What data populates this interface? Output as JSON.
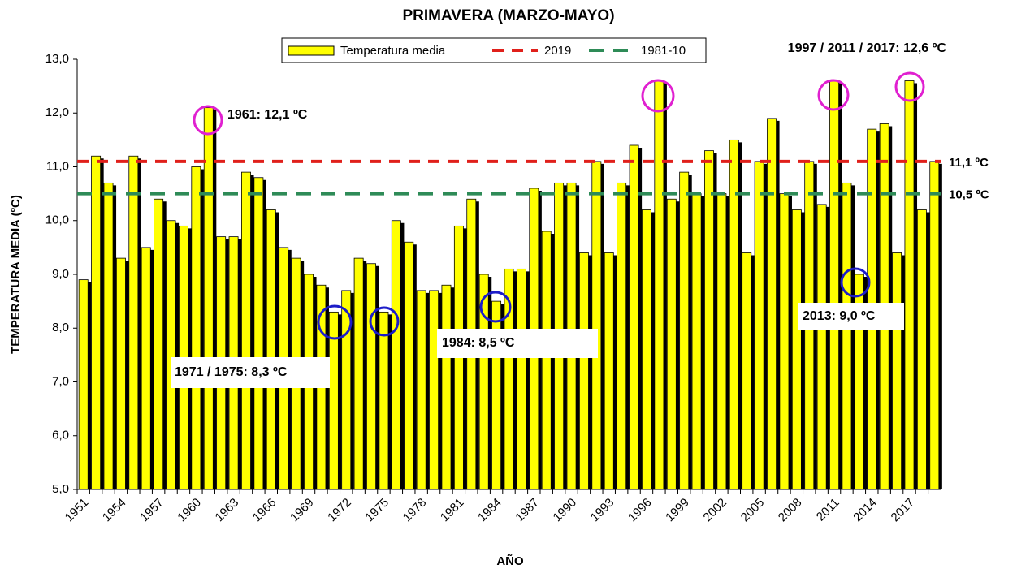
{
  "chart_data": {
    "type": "bar",
    "title": "PRIMAVERA (MARZO-MAYO)",
    "x_label": "AÑO",
    "y_label": "TEMPERATURA MEDIA (ºC)",
    "categories": [
      "1951",
      null,
      null,
      "1954",
      null,
      null,
      "1957",
      null,
      null,
      "1960",
      null,
      null,
      "1963",
      null,
      null,
      "1966",
      null,
      null,
      "1969",
      null,
      null,
      "1972",
      null,
      null,
      "1975",
      null,
      null,
      "1978",
      null,
      null,
      "1981",
      null,
      null,
      "1984",
      null,
      null,
      "1987",
      null,
      null,
      "1990",
      null,
      null,
      "1993",
      null,
      null,
      "1996",
      null,
      null,
      "1999",
      null,
      null,
      "2002",
      null,
      null,
      "2005",
      null,
      null,
      "2008",
      null,
      null,
      "2011",
      null,
      null,
      "2014",
      null,
      null,
      "2017",
      null,
      null
    ],
    "series": [
      {
        "name": "Temperatura media",
        "color": "#ffff00",
        "values": [
          8.9,
          11.2,
          10.7,
          9.3,
          11.2,
          9.5,
          10.4,
          10.0,
          9.9,
          11.0,
          12.1,
          9.7,
          9.7,
          10.9,
          10.8,
          10.2,
          9.5,
          9.3,
          9.0,
          8.8,
          8.3,
          8.7,
          9.3,
          9.2,
          8.3,
          10.0,
          9.6,
          8.7,
          8.7,
          8.8,
          9.9,
          10.4,
          9.0,
          8.5,
          9.1,
          9.1,
          10.6,
          9.8,
          10.7,
          10.7,
          9.4,
          11.1,
          9.4,
          10.7,
          11.4,
          10.2,
          12.6,
          10.4,
          10.9,
          10.5,
          11.3,
          10.5,
          11.5,
          9.4,
          11.1,
          11.9,
          10.5,
          10.2,
          11.1,
          10.3,
          12.6,
          10.7,
          9.0,
          11.7,
          11.8,
          9.4,
          12.6,
          10.2,
          11.1
        ]
      }
    ],
    "reference_lines": [
      {
        "name": "2019",
        "value": 11.1,
        "label": "11,1 ºC",
        "color": "#e0201b"
      },
      {
        "name": "1981-10",
        "value": 10.5,
        "label": "10,5 ºC",
        "color": "#2e8b57"
      }
    ],
    "annotations": [
      {
        "text": "1961: 12,1 ºC",
        "color": "#e020d0"
      },
      {
        "text": "1997 / 2011 / 2017: 12,6 ºC",
        "color": "#e020d0"
      },
      {
        "text": "1971 / 1975: 8,3 ºC",
        "color": "#1c1cc8"
      },
      {
        "text": "1984: 8,5 ºC",
        "color": "#1c1cc8"
      },
      {
        "text": "2013: 9,0 ºC",
        "color": "#1c1cc8"
      }
    ],
    "ylim": [
      5.0,
      13.0
    ],
    "yticks": [
      {
        "value": 5,
        "label": "5,0"
      },
      {
        "value": 6,
        "label": "6,0"
      },
      {
        "value": 7,
        "label": "7,0"
      },
      {
        "value": 8,
        "label": "8,0"
      },
      {
        "value": 9,
        "label": "9,0"
      },
      {
        "value": 10,
        "label": "10,0"
      },
      {
        "value": 11,
        "label": "11,0"
      },
      {
        "value": 12,
        "label": "12,0"
      },
      {
        "value": 13,
        "label": "13,0"
      }
    ],
    "grid": false
  }
}
